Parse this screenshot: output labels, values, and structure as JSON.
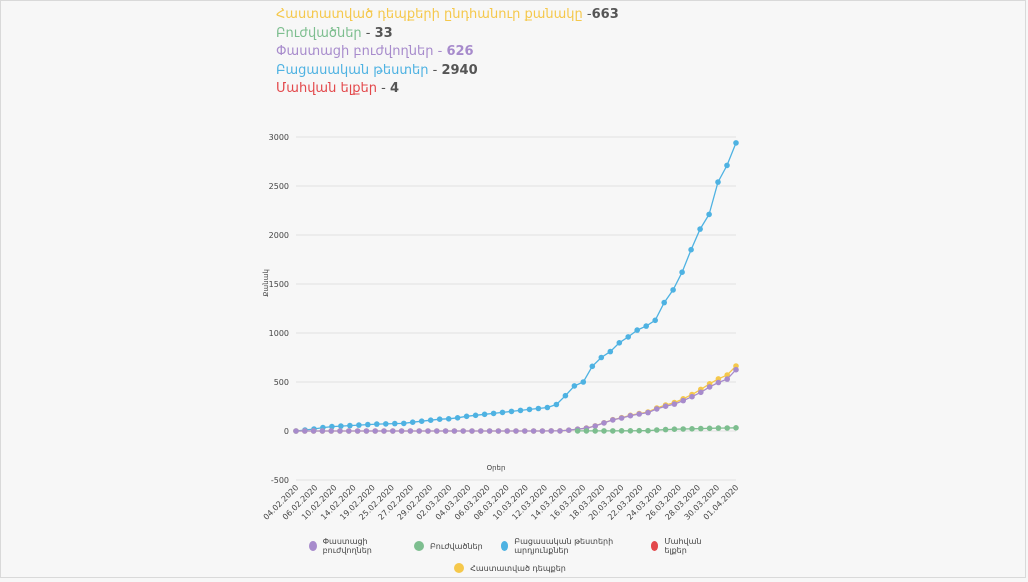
{
  "stats": [
    {
      "label": "Հաստատված դեպքերի ընդհանուր քանակը",
      "sep": " -",
      "value": "663",
      "color": "#f5c84b"
    },
    {
      "label": "Բուժվածներ",
      "sep": " - ",
      "value": "33",
      "color": "#7dbe8f"
    },
    {
      "label": "Փաստացի բուժվողներ",
      "sep": " - ",
      "value": "626",
      "color": "#a78bcc"
    },
    {
      "label": "Բացասական թեստեր",
      "sep": " - ",
      "value": "2940",
      "color": "#4eb2e2"
    },
    {
      "label": "Մահվան ելքեր",
      "sep": " - ",
      "value": "4",
      "color": "#e3484b"
    }
  ],
  "chart_data": {
    "type": "line",
    "xlabel": "Օրեր",
    "ylabel": "Քանակ",
    "ylim": [
      -500,
      3000
    ],
    "yticks": [
      3000,
      2500,
      2000,
      1500,
      1000,
      500,
      0,
      -500
    ],
    "x_tick_labels": [
      "04.02.2020",
      "06.02.2020",
      "10.02.2020",
      "14.02.2020",
      "19.02.2020",
      "25.02.2020",
      "27.02.2020",
      "29.02.2020",
      "02.03.2020",
      "04.03.2020",
      "06.03.2020",
      "08.03.2020",
      "10.03.2020",
      "12.03.2020",
      "14.03.2020",
      "16.03.2020",
      "18.03.2020",
      "20.03.2020",
      "22.03.2020",
      "24.03.2020",
      "26.03.2020",
      "28.03.2020",
      "30.03.2020",
      "01.04.2020"
    ],
    "series": [
      {
        "name": "Բացասական թեստերի արդյունքներ",
        "color": "#4eb2e2",
        "values": [
          0,
          10,
          20,
          35,
          45,
          50,
          55,
          60,
          65,
          70,
          72,
          75,
          78,
          90,
          100,
          110,
          120,
          125,
          135,
          150,
          160,
          170,
          180,
          190,
          200,
          210,
          220,
          230,
          240,
          270,
          360,
          460,
          500,
          660,
          750,
          810,
          900,
          960,
          1030,
          1070,
          1130,
          1310,
          1440,
          1620,
          1850,
          2060,
          2210,
          2540,
          2710,
          2940
        ]
      },
      {
        "name": "Հաստատված դեպքեր",
        "color": "#f5c84b",
        "values": [
          0,
          0,
          0,
          0,
          0,
          0,
          0,
          0,
          0,
          0,
          0,
          0,
          0,
          0,
          0,
          0,
          0,
          0,
          0,
          0,
          0,
          0,
          0,
          0,
          0,
          0,
          0,
          0,
          0,
          1,
          1,
          8,
          18,
          30,
          52,
          84,
          115,
          136,
          160,
          178,
          194,
          235,
          265,
          290,
          329,
          372,
          424,
          482,
          532,
          571,
          663
        ]
      },
      {
        "name": "Փաստացի բուժվողներ",
        "color": "#a78bcc",
        "values": [
          0,
          0,
          0,
          0,
          0,
          0,
          0,
          0,
          0,
          0,
          0,
          0,
          0,
          0,
          0,
          0,
          0,
          0,
          0,
          0,
          0,
          0,
          0,
          0,
          0,
          0,
          0,
          0,
          0,
          1,
          1,
          8,
          18,
          29,
          51,
          83,
          113,
          133,
          156,
          173,
          188,
          225,
          253,
          275,
          310,
          350,
          395,
          450,
          495,
          530,
          626
        ]
      },
      {
        "name": "Բուժվածներ",
        "color": "#7dbe8f",
        "values": [
          null,
          null,
          null,
          null,
          null,
          null,
          null,
          null,
          null,
          null,
          null,
          null,
          null,
          null,
          null,
          null,
          null,
          null,
          null,
          null,
          null,
          null,
          null,
          null,
          null,
          null,
          null,
          null,
          null,
          null,
          null,
          null,
          1,
          1,
          1,
          1,
          1,
          2,
          2,
          3,
          3,
          10,
          14,
          18,
          20,
          22,
          25,
          28,
          30,
          31,
          33
        ]
      },
      {
        "name": "Մահվան ելքեր",
        "color": "#e3484b",
        "values": []
      }
    ]
  },
  "legend": {
    "row1": [
      {
        "label": "Փաստացի բուժվողներ",
        "color": "#a78bcc"
      },
      {
        "label": "Բուժվածներ",
        "color": "#7dbe8f"
      },
      {
        "label": "Բացասական թեստերի արդյունքներ",
        "color": "#4eb2e2"
      },
      {
        "label": "Մահվան ելքեր",
        "color": "#e3484b"
      }
    ],
    "row2": [
      {
        "label": "Հաստատված դեպքեր",
        "color": "#f5c84b"
      }
    ]
  }
}
